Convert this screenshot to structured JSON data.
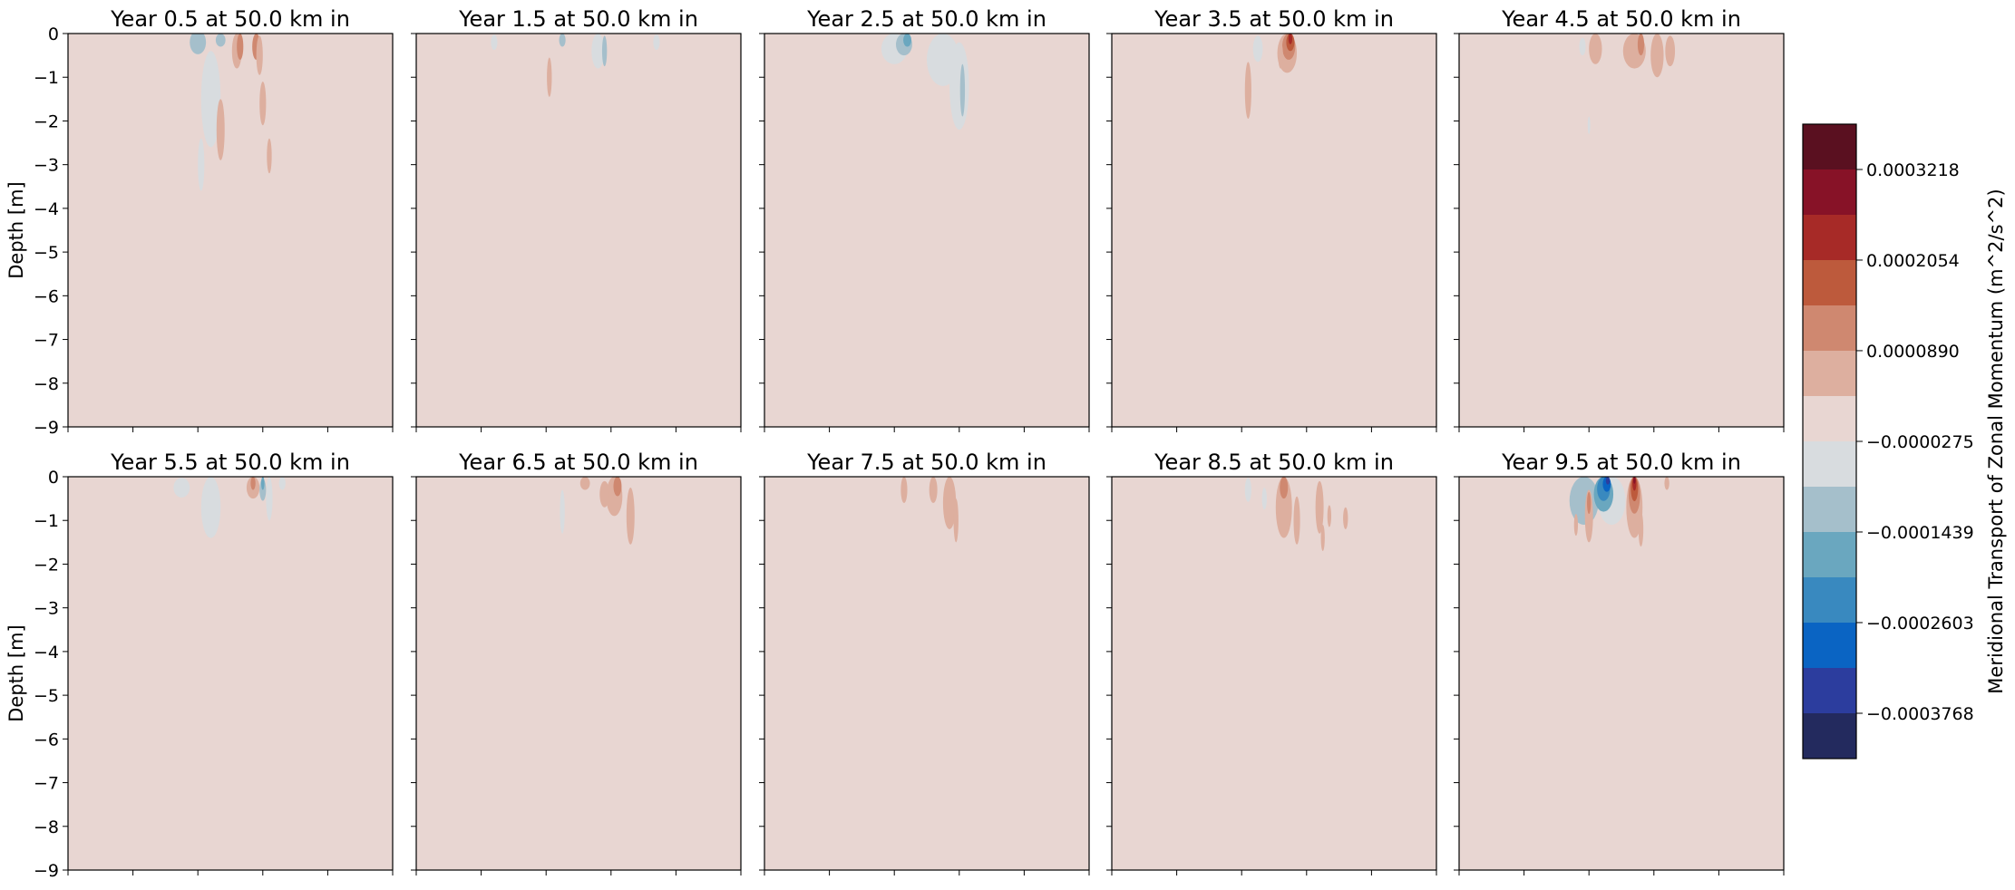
{
  "colors": {
    "background": "#e8d6d2",
    "levels": [
      "#232a5e",
      "#2c3d9e",
      "#0a64c3",
      "#3989bf",
      "#6aa7bf",
      "#a5bfcb",
      "#d8dcdf",
      "#e8d6d2",
      "#ddaf9f",
      "#cf8870",
      "#bd5a3c",
      "#a72a27",
      "#871227",
      "#5a1020"
    ]
  },
  "chart_data": {
    "type": "contour",
    "ylabel": "Depth [m]",
    "ylim": [
      -9,
      0
    ],
    "yticks": [
      "0",
      "−1",
      "−2",
      "−3",
      "−4",
      "−5",
      "−6",
      "−7",
      "−8",
      "−9"
    ],
    "colorbar": {
      "label": "Meridional Transport of Zonal Momentum (m^2/s^2)",
      "min": -0.000435,
      "max": 0.00038,
      "ticks": [
        "0.0003218",
        "0.0002054",
        "0.0000890",
        "−0.0000275",
        "−0.0001439",
        "−0.0002603",
        "−0.0003768"
      ]
    },
    "panels": [
      {
        "title": "Year 0.5 at 50.0 km in",
        "features": [
          {
            "x": 0.4,
            "y": -0.2,
            "w": 0.05,
            "h": 0.55,
            "level": 5
          },
          {
            "x": 0.44,
            "y": -1.5,
            "w": 0.06,
            "h": 2.2,
            "level": 6
          },
          {
            "x": 0.41,
            "y": -3.0,
            "w": 0.02,
            "h": 1.2,
            "level": 6
          },
          {
            "x": 0.47,
            "y": -0.15,
            "w": 0.03,
            "h": 0.3,
            "level": 5
          },
          {
            "x": 0.52,
            "y": -0.4,
            "w": 0.03,
            "h": 0.8,
            "level": 8
          },
          {
            "x": 0.53,
            "y": -0.3,
            "w": 0.02,
            "h": 0.6,
            "level": 9
          },
          {
            "x": 0.58,
            "y": -0.3,
            "w": 0.025,
            "h": 0.6,
            "level": 9
          },
          {
            "x": 0.59,
            "y": -0.5,
            "w": 0.02,
            "h": 0.9,
            "level": 8
          },
          {
            "x": 0.47,
            "y": -2.2,
            "w": 0.025,
            "h": 1.4,
            "level": 8
          },
          {
            "x": 0.6,
            "y": -1.6,
            "w": 0.02,
            "h": 1.0,
            "level": 8
          },
          {
            "x": 0.62,
            "y": -2.8,
            "w": 0.015,
            "h": 0.8,
            "level": 8
          }
        ]
      },
      {
        "title": "Year 1.5 at 50.0 km in",
        "features": [
          {
            "x": 0.24,
            "y": -0.2,
            "w": 0.02,
            "h": 0.35,
            "level": 6
          },
          {
            "x": 0.45,
            "y": -0.15,
            "w": 0.02,
            "h": 0.3,
            "level": 5
          },
          {
            "x": 0.56,
            "y": -0.4,
            "w": 0.04,
            "h": 0.8,
            "level": 6
          },
          {
            "x": 0.58,
            "y": -0.4,
            "w": 0.015,
            "h": 0.7,
            "level": 5
          },
          {
            "x": 0.74,
            "y": -0.2,
            "w": 0.02,
            "h": 0.35,
            "level": 6
          },
          {
            "x": 0.41,
            "y": -1.0,
            "w": 0.015,
            "h": 0.9,
            "level": 8
          }
        ]
      },
      {
        "title": "Year 2.5 at 50.0 km in",
        "features": [
          {
            "x": 0.4,
            "y": -0.35,
            "w": 0.08,
            "h": 0.7,
            "level": 6
          },
          {
            "x": 0.43,
            "y": -0.25,
            "w": 0.05,
            "h": 0.5,
            "level": 5
          },
          {
            "x": 0.44,
            "y": -0.15,
            "w": 0.025,
            "h": 0.3,
            "level": 4
          },
          {
            "x": 0.55,
            "y": -0.6,
            "w": 0.1,
            "h": 1.2,
            "level": 6
          },
          {
            "x": 0.6,
            "y": -1.2,
            "w": 0.06,
            "h": 2.0,
            "level": 6
          },
          {
            "x": 0.61,
            "y": -1.3,
            "w": 0.015,
            "h": 1.2,
            "level": 5
          }
        ]
      },
      {
        "title": "Year 3.5 at 50.0 km in",
        "features": [
          {
            "x": 0.45,
            "y": -0.35,
            "w": 0.03,
            "h": 0.6,
            "level": 6
          },
          {
            "x": 0.54,
            "y": -0.45,
            "w": 0.06,
            "h": 0.9,
            "level": 8
          },
          {
            "x": 0.545,
            "y": -0.3,
            "w": 0.04,
            "h": 0.6,
            "level": 9
          },
          {
            "x": 0.55,
            "y": -0.2,
            "w": 0.025,
            "h": 0.4,
            "level": 10
          },
          {
            "x": 0.55,
            "y": -0.12,
            "w": 0.012,
            "h": 0.25,
            "level": 11
          },
          {
            "x": 0.42,
            "y": -1.3,
            "w": 0.02,
            "h": 1.3,
            "level": 8
          },
          {
            "x": 0.52,
            "y": -0.5,
            "w": 0.015,
            "h": 0.6,
            "level": 8
          }
        ]
      },
      {
        "title": "Year 4.5 at 50.0 km in",
        "features": [
          {
            "x": 0.42,
            "y": -0.35,
            "w": 0.04,
            "h": 0.7,
            "level": 8
          },
          {
            "x": 0.54,
            "y": -0.4,
            "w": 0.07,
            "h": 0.8,
            "level": 8
          },
          {
            "x": 0.56,
            "y": -0.25,
            "w": 0.02,
            "h": 0.5,
            "level": 9
          },
          {
            "x": 0.61,
            "y": -0.5,
            "w": 0.04,
            "h": 1.0,
            "level": 8
          },
          {
            "x": 0.65,
            "y": -0.4,
            "w": 0.03,
            "h": 0.7,
            "level": 8
          },
          {
            "x": 0.38,
            "y": -0.3,
            "w": 0.02,
            "h": 0.4,
            "level": 6
          },
          {
            "x": 0.4,
            "y": -2.1,
            "w": 0.008,
            "h": 0.4,
            "level": 6
          }
        ]
      },
      {
        "title": "Year 5.5 at 50.0 km in",
        "features": [
          {
            "x": 0.35,
            "y": -0.25,
            "w": 0.05,
            "h": 0.45,
            "level": 6
          },
          {
            "x": 0.44,
            "y": -0.7,
            "w": 0.06,
            "h": 1.4,
            "level": 6
          },
          {
            "x": 0.57,
            "y": -0.25,
            "w": 0.04,
            "h": 0.5,
            "level": 8
          },
          {
            "x": 0.57,
            "y": -0.15,
            "w": 0.015,
            "h": 0.3,
            "level": 9
          },
          {
            "x": 0.6,
            "y": -0.3,
            "w": 0.02,
            "h": 0.5,
            "level": 5
          },
          {
            "x": 0.6,
            "y": -0.15,
            "w": 0.01,
            "h": 0.3,
            "level": 4
          },
          {
            "x": 0.62,
            "y": -0.5,
            "w": 0.02,
            "h": 1.0,
            "level": 6
          },
          {
            "x": 0.66,
            "y": -0.15,
            "w": 0.02,
            "h": 0.3,
            "level": 6
          }
        ]
      },
      {
        "title": "Year 6.5 at 50.0 km in",
        "features": [
          {
            "x": 0.52,
            "y": -0.15,
            "w": 0.03,
            "h": 0.3,
            "level": 8
          },
          {
            "x": 0.61,
            "y": -0.45,
            "w": 0.05,
            "h": 0.9,
            "level": 8
          },
          {
            "x": 0.62,
            "y": -0.22,
            "w": 0.025,
            "h": 0.45,
            "level": 9
          },
          {
            "x": 0.66,
            "y": -0.9,
            "w": 0.025,
            "h": 1.3,
            "level": 8
          },
          {
            "x": 0.58,
            "y": -0.4,
            "w": 0.03,
            "h": 0.6,
            "level": 8
          },
          {
            "x": 0.45,
            "y": -0.8,
            "w": 0.015,
            "h": 1.0,
            "level": 6
          }
        ]
      },
      {
        "title": "Year 7.5 at 50.0 km in",
        "features": [
          {
            "x": 0.43,
            "y": -0.3,
            "w": 0.02,
            "h": 0.6,
            "level": 8
          },
          {
            "x": 0.52,
            "y": -0.3,
            "w": 0.025,
            "h": 0.6,
            "level": 8
          },
          {
            "x": 0.57,
            "y": -0.6,
            "w": 0.04,
            "h": 1.2,
            "level": 8
          },
          {
            "x": 0.59,
            "y": -1.0,
            "w": 0.015,
            "h": 1.0,
            "level": 8
          }
        ]
      },
      {
        "title": "Year 8.5 at 50.0 km in",
        "features": [
          {
            "x": 0.42,
            "y": -0.3,
            "w": 0.02,
            "h": 0.55,
            "level": 6
          },
          {
            "x": 0.53,
            "y": -0.7,
            "w": 0.05,
            "h": 1.4,
            "level": 8
          },
          {
            "x": 0.53,
            "y": -0.25,
            "w": 0.025,
            "h": 0.5,
            "level": 9
          },
          {
            "x": 0.57,
            "y": -1.0,
            "w": 0.02,
            "h": 1.1,
            "level": 8
          },
          {
            "x": 0.64,
            "y": -0.7,
            "w": 0.025,
            "h": 1.2,
            "level": 8
          },
          {
            "x": 0.65,
            "y": -1.4,
            "w": 0.012,
            "h": 0.6,
            "level": 8
          },
          {
            "x": 0.67,
            "y": -0.9,
            "w": 0.012,
            "h": 0.5,
            "level": 8
          },
          {
            "x": 0.72,
            "y": -0.95,
            "w": 0.015,
            "h": 0.5,
            "level": 8
          },
          {
            "x": 0.47,
            "y": -0.5,
            "w": 0.015,
            "h": 0.5,
            "level": 6
          }
        ]
      },
      {
        "title": "Year 9.5 at 50.0 km in",
        "features": [
          {
            "x": 0.385,
            "y": -0.55,
            "w": 0.09,
            "h": 1.1,
            "level": 5
          },
          {
            "x": 0.47,
            "y": -0.55,
            "w": 0.085,
            "h": 1.1,
            "level": 6
          },
          {
            "x": 0.445,
            "y": -0.4,
            "w": 0.06,
            "h": 0.8,
            "level": 4
          },
          {
            "x": 0.445,
            "y": -0.28,
            "w": 0.04,
            "h": 0.55,
            "level": 3
          },
          {
            "x": 0.455,
            "y": -0.17,
            "w": 0.025,
            "h": 0.35,
            "level": 2
          },
          {
            "x": 0.458,
            "y": -0.09,
            "w": 0.012,
            "h": 0.18,
            "level": 1
          },
          {
            "x": 0.54,
            "y": -0.7,
            "w": 0.05,
            "h": 1.4,
            "level": 8
          },
          {
            "x": 0.54,
            "y": -0.42,
            "w": 0.035,
            "h": 0.85,
            "level": 9
          },
          {
            "x": 0.54,
            "y": -0.28,
            "w": 0.022,
            "h": 0.56,
            "level": 10
          },
          {
            "x": 0.54,
            "y": -0.16,
            "w": 0.012,
            "h": 0.32,
            "level": 11
          },
          {
            "x": 0.54,
            "y": -0.08,
            "w": 0.007,
            "h": 0.16,
            "level": 12
          },
          {
            "x": 0.4,
            "y": -0.9,
            "w": 0.025,
            "h": 1.2,
            "level": 8
          },
          {
            "x": 0.4,
            "y": -0.6,
            "w": 0.012,
            "h": 0.5,
            "level": 9
          },
          {
            "x": 0.36,
            "y": -1.1,
            "w": 0.012,
            "h": 0.5,
            "level": 8
          },
          {
            "x": 0.56,
            "y": -1.2,
            "w": 0.015,
            "h": 0.8,
            "level": 8
          },
          {
            "x": 0.64,
            "y": -0.15,
            "w": 0.015,
            "h": 0.3,
            "level": 8
          }
        ]
      }
    ]
  }
}
